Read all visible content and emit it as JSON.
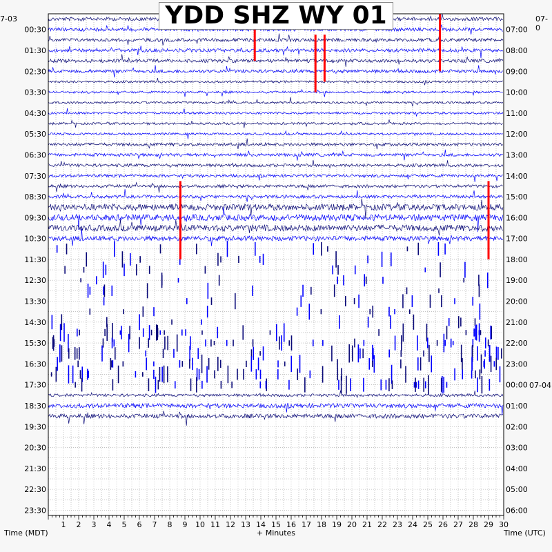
{
  "chart_data": {
    "type": "line",
    "title": "YDD SHZ WY 01",
    "start_date_left": "7-03",
    "start_date_right": "07-0",
    "date_change_label": "07-04",
    "xlabel": "+ Minutes",
    "ylabel_left": "Time (MDT)",
    "ylabel_right": "Time (UTC)",
    "x_ticks": [
      "1",
      "2",
      "3",
      "4",
      "5",
      "6",
      "7",
      "8",
      "9",
      "10",
      "11",
      "12",
      "13",
      "14",
      "15",
      "16",
      "17",
      "18",
      "19",
      "20",
      "21",
      "22",
      "23",
      "24",
      "25",
      "26",
      "27",
      "28",
      "29",
      "30"
    ],
    "xlim": [
      0,
      30
    ],
    "left_time_labels": [
      "00:30",
      "01:30",
      "02:30",
      "03:30",
      "04:30",
      "05:30",
      "06:30",
      "07:30",
      "08:30",
      "09:30",
      "10:30",
      "11:30",
      "12:30",
      "13:30",
      "14:30",
      "15:30",
      "16:30",
      "17:30",
      "18:30",
      "19:30",
      "20:30",
      "21:30",
      "22:30",
      "23:30"
    ],
    "right_time_labels": [
      "07:00",
      "08:00",
      "09:00",
      "10:00",
      "11:00",
      "12:00",
      "13:00",
      "14:00",
      "15:00",
      "16:00",
      "17:00",
      "18:00",
      "19:00",
      "20:00",
      "21:00",
      "22:00",
      "23:00",
      "00:00",
      "01:00",
      "02:00",
      "03:00",
      "04:00",
      "05:00",
      "06:00"
    ],
    "trace_colors": [
      "#0a0a78",
      "#0000ff"
    ],
    "clip_color": "#ff0000",
    "grid": true,
    "rows_per_hour": 2,
    "last_data_minute": 23,
    "red_clips": [
      {
        "row": 0,
        "minute": 25.8,
        "rows_down": 5
      },
      {
        "row": 16,
        "minute": 8.7,
        "rows_down": 7
      },
      {
        "row": 16,
        "minute": 29.0,
        "rows_down": 7
      },
      {
        "row": 1,
        "minute": 13.6,
        "rows_down": 3
      },
      {
        "row": 2,
        "minute": 17.6,
        "rows_down": 5
      },
      {
        "row": 2,
        "minute": 18.2,
        "rows_down": 4
      }
    ]
  }
}
